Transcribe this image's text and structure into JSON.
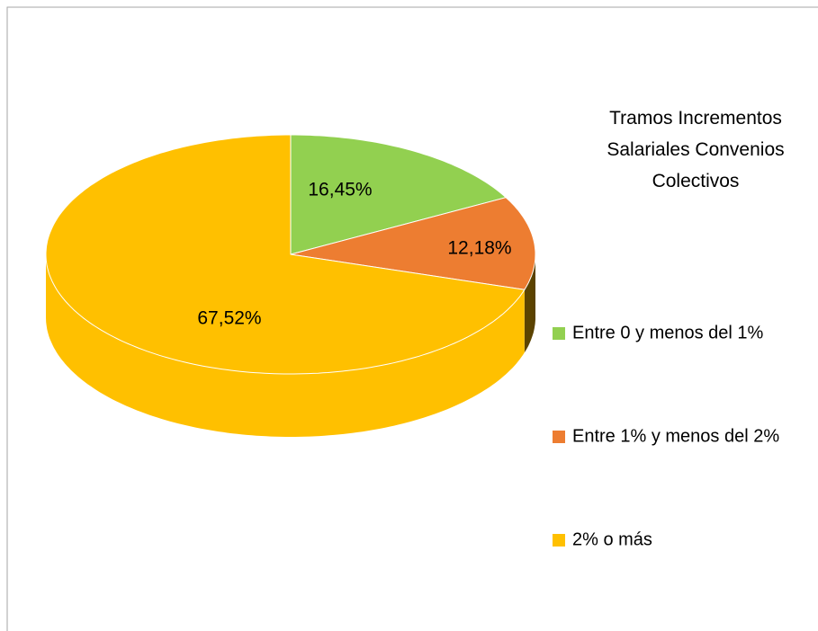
{
  "chart_data": {
    "type": "pie3d",
    "legend_title": "Tramos Incrementos Salariales Convenios Colectivos",
    "categories": [
      "Entre 0 y menos del 1%",
      "Entre 1% y menos del 2%",
      "2% o más"
    ],
    "values": [
      16.45,
      12.18,
      67.52
    ],
    "value_labels": [
      "16,45%",
      "12,18%",
      "67,52%"
    ],
    "colors": [
      "#92d050",
      "#ed7d31",
      "#ffc000"
    ],
    "legend": "right"
  }
}
